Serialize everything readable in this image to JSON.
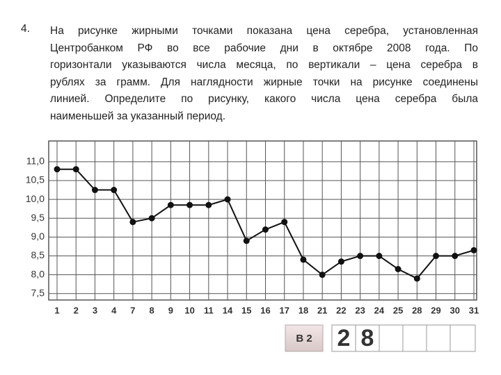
{
  "problem": {
    "number": "4.",
    "lines": [
      "На рисунке жирными точками показана цена серебра, установленная",
      "Центробанком РФ во все рабочие дни в октябре 2008 года. По",
      "горизонтали указываются числа месяца, по вертикали – цена серебра в",
      "рублях за грамм. Для наглядности жирные точки на рисунке соединены",
      "линией. Определите по рисунку, какого числа цена серебра была",
      "наименьшей за указанный период."
    ]
  },
  "chart_data": {
    "type": "line",
    "categories": [
      "1",
      "2",
      "3",
      "4",
      "7",
      "8",
      "9",
      "10",
      "11",
      "14",
      "15",
      "16",
      "17",
      "18",
      "21",
      "22",
      "23",
      "24",
      "25",
      "28",
      "29",
      "30",
      "31"
    ],
    "values": [
      10.8,
      10.8,
      10.25,
      10.25,
      9.4,
      9.5,
      9.85,
      9.85,
      9.85,
      10.0,
      8.9,
      9.2,
      9.4,
      8.4,
      8.0,
      8.35,
      8.5,
      8.5,
      8.15,
      7.9,
      8.5,
      8.5,
      8.65
    ],
    "color": "#111111",
    "ylim": [
      7.33,
      11.55
    ],
    "yticks": [
      {
        "value": 7.5,
        "label": "7,5"
      },
      {
        "value": 8.0,
        "label": "8,0"
      },
      {
        "value": 8.5,
        "label": "8,5"
      },
      {
        "value": 9.0,
        "label": "9,0"
      },
      {
        "value": 9.5,
        "label": "9,5"
      },
      {
        "value": 10.0,
        "label": "10,0"
      },
      {
        "value": 10.5,
        "label": "10,5"
      },
      {
        "value": 11.0,
        "label": "11,0"
      }
    ],
    "grid": true
  },
  "answer": {
    "label": "В 2",
    "digits": [
      "2",
      "8"
    ]
  }
}
